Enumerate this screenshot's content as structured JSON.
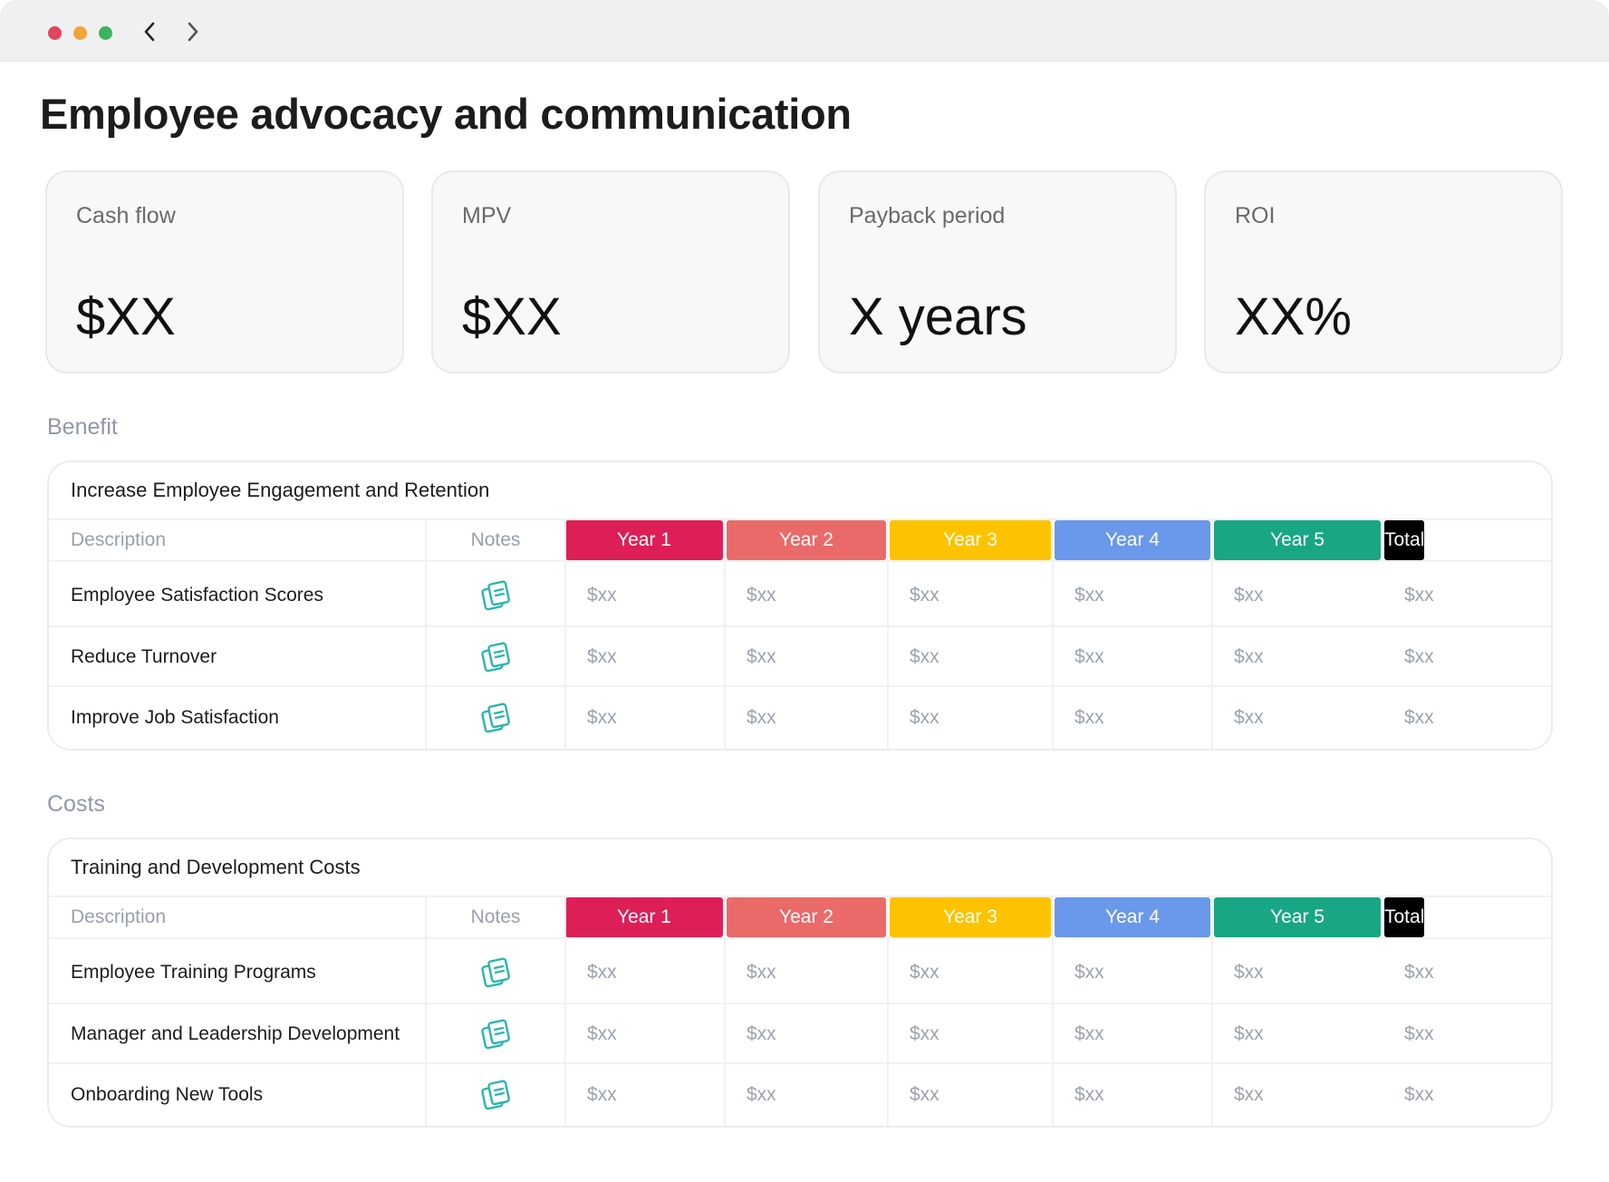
{
  "window": {
    "title": "Employee advocacy and communication",
    "nav": {
      "back_icon": "chevron-left-icon",
      "forward_icon": "chevron-right-icon"
    }
  },
  "kpis": [
    {
      "label": "Cash flow",
      "value": "$XX"
    },
    {
      "label": "MPV",
      "value": "$XX"
    },
    {
      "label": "Payback period",
      "value": "X years"
    },
    {
      "label": "ROI",
      "value": "XX%"
    }
  ],
  "columns": {
    "description": "Description",
    "notes": "Notes",
    "years": [
      {
        "label": "Year 1",
        "color": "#de1f57"
      },
      {
        "label": "Year 2",
        "color": "#ea6a6a"
      },
      {
        "label": "Year 3",
        "color": "#fdc300"
      },
      {
        "label": "Year 4",
        "color": "#6a98ea"
      },
      {
        "label": "Year 5",
        "color": "#19a685"
      },
      {
        "label": "Total",
        "color": "#000000"
      }
    ]
  },
  "notes_icon": {
    "name": "notes-icon",
    "color": "#2ab5ad"
  },
  "sections": [
    {
      "label": "Benefit",
      "group_title": "Increase Employee Engagement and Retention",
      "rows": [
        {
          "description": "Employee Satisfaction Scores",
          "values": [
            "$xx",
            "$xx",
            "$xx",
            "$xx",
            "$xx",
            "$xx"
          ]
        },
        {
          "description": "Reduce Turnover",
          "values": [
            "$xx",
            "$xx",
            "$xx",
            "$xx",
            "$xx",
            "$xx"
          ]
        },
        {
          "description": "Improve Job Satisfaction",
          "values": [
            "$xx",
            "$xx",
            "$xx",
            "$xx",
            "$xx",
            "$xx"
          ]
        }
      ]
    },
    {
      "label": "Costs",
      "group_title": "Training and Development Costs",
      "rows": [
        {
          "description": "Employee Training Programs",
          "values": [
            "$xx",
            "$xx",
            "$xx",
            "$xx",
            "$xx",
            "$xx"
          ]
        },
        {
          "description": "Manager and Leadership Development",
          "values": [
            "$xx",
            "$xx",
            "$xx",
            "$xx",
            "$xx",
            "$xx"
          ]
        },
        {
          "description": "Onboarding New Tools",
          "values": [
            "$xx",
            "$xx",
            "$xx",
            "$xx",
            "$xx",
            "$xx"
          ]
        }
      ]
    }
  ]
}
